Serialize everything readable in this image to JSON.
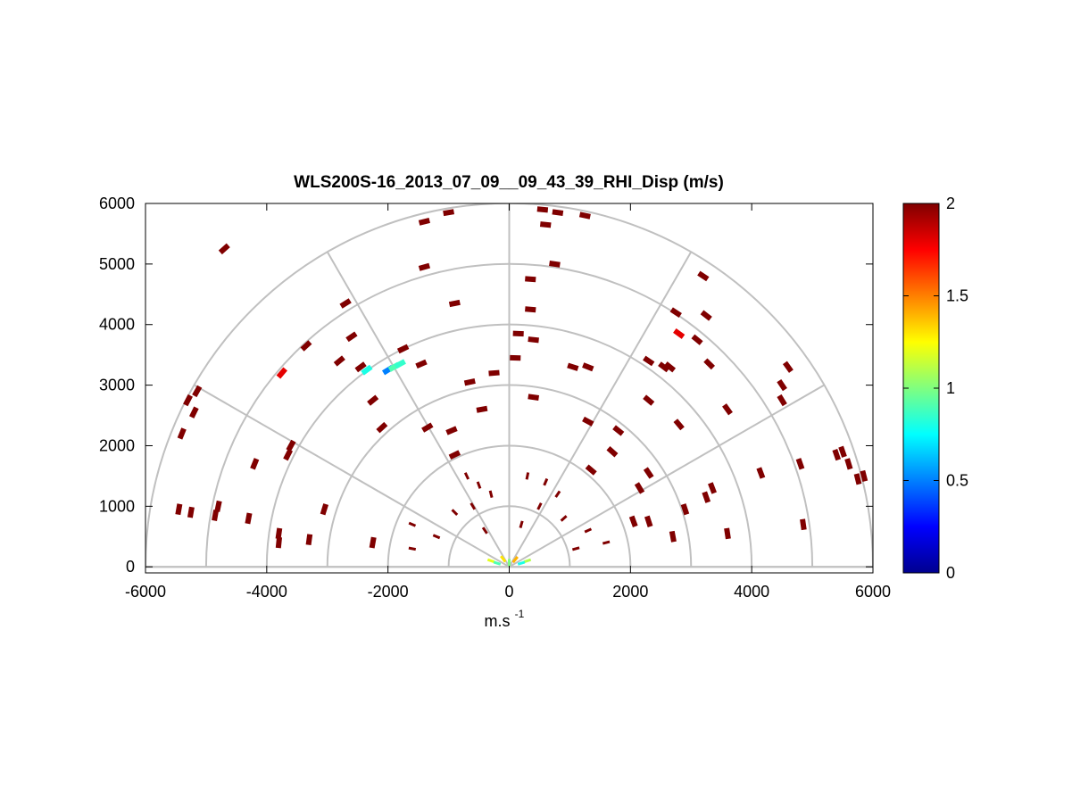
{
  "chart_data": {
    "type": "scatter",
    "subtype": "polar-rhi-pcolor",
    "title": "WLS200S-16_2013_07_09__09_43_39_RHI_Disp (m/s)",
    "xlabel": "m.s",
    "xlabel_superscript": "-1",
    "xlim": [
      -6000,
      6000
    ],
    "ylim": [
      -100,
      6000
    ],
    "x_ticks": [
      -6000,
      -4000,
      -2000,
      0,
      2000,
      4000,
      6000
    ],
    "x_tick_labels": [
      "-6000",
      "-4000",
      "-2000",
      "0",
      "2000",
      "4000",
      "6000"
    ],
    "y_ticks": [
      0,
      1000,
      2000,
      3000,
      4000,
      5000,
      6000
    ],
    "y_tick_labels": [
      "0",
      "1000",
      "2000",
      "3000",
      "4000",
      "5000",
      "6000"
    ],
    "polar_grid": {
      "ring_radii": [
        1000,
        2000,
        3000,
        4000,
        5000,
        6000
      ],
      "spoke_angles_deg": [
        0,
        30,
        60,
        90,
        120,
        150,
        180
      ],
      "color": "#c0c0c0"
    },
    "colorbar": {
      "min": 0,
      "max": 2,
      "ticks": [
        0,
        0.5,
        1,
        1.5,
        2
      ],
      "tick_labels": [
        "0",
        "0.5",
        "1",
        "1.5",
        "2"
      ],
      "colormap": "jet"
    },
    "cells": [
      {
        "x": -5300,
        "y": 2750,
        "v": 2
      },
      {
        "x": -5200,
        "y": 2550,
        "v": 2
      },
      {
        "x": -5400,
        "y": 2200,
        "v": 2
      },
      {
        "x": -5150,
        "y": 2900,
        "v": 2
      },
      {
        "x": -5450,
        "y": 950,
        "v": 2
      },
      {
        "x": -5250,
        "y": 900,
        "v": 2
      },
      {
        "x": -4700,
        "y": 5250,
        "v": 2
      },
      {
        "x": -4200,
        "y": 1700,
        "v": 2
      },
      {
        "x": -4800,
        "y": 1000,
        "v": 2
      },
      {
        "x": -4850,
        "y": 850,
        "v": 2
      },
      {
        "x": -4300,
        "y": 800,
        "v": 2
      },
      {
        "x": -3750,
        "y": 3200,
        "v": 1.8
      },
      {
        "x": -3650,
        "y": 1850,
        "v": 2
      },
      {
        "x": -3600,
        "y": 2000,
        "v": 2
      },
      {
        "x": -3800,
        "y": 550,
        "v": 2
      },
      {
        "x": -3800,
        "y": 400,
        "v": 2
      },
      {
        "x": -3300,
        "y": 450,
        "v": 2
      },
      {
        "x": -3050,
        "y": 950,
        "v": 2
      },
      {
        "x": -3350,
        "y": 3650,
        "v": 2
      },
      {
        "x": -2700,
        "y": 4350,
        "v": 2
      },
      {
        "x": -2600,
        "y": 3800,
        "v": 2
      },
      {
        "x": -2800,
        "y": 3400,
        "v": 2
      },
      {
        "x": -2450,
        "y": 3300,
        "v": 2
      },
      {
        "x": -2350,
        "y": 3250,
        "v": 0.8
      },
      {
        "x": -2000,
        "y": 3250,
        "v": 0.5
      },
      {
        "x": -1900,
        "y": 3300,
        "v": 0.9
      },
      {
        "x": -1800,
        "y": 3350,
        "v": 0.85
      },
      {
        "x": -1750,
        "y": 3600,
        "v": 2
      },
      {
        "x": -1450,
        "y": 3350,
        "v": 2
      },
      {
        "x": -2250,
        "y": 2750,
        "v": 2
      },
      {
        "x": -2100,
        "y": 2300,
        "v": 2
      },
      {
        "x": -1350,
        "y": 2300,
        "v": 2
      },
      {
        "x": -2250,
        "y": 400,
        "v": 2
      },
      {
        "x": -1400,
        "y": 5700,
        "v": 2
      },
      {
        "x": -1000,
        "y": 5850,
        "v": 2
      },
      {
        "x": -1400,
        "y": 4950,
        "v": 2
      },
      {
        "x": -900,
        "y": 4350,
        "v": 2
      },
      {
        "x": -650,
        "y": 3050,
        "v": 2
      },
      {
        "x": -450,
        "y": 2600,
        "v": 2
      },
      {
        "x": -950,
        "y": 2250,
        "v": 2
      },
      {
        "x": -900,
        "y": 1850,
        "v": 2
      },
      {
        "x": -250,
        "y": 3200,
        "v": 2
      },
      {
        "x": 550,
        "y": 5900,
        "v": 2
      },
      {
        "x": 800,
        "y": 5850,
        "v": 2
      },
      {
        "x": 1250,
        "y": 5800,
        "v": 2
      },
      {
        "x": 600,
        "y": 5650,
        "v": 2
      },
      {
        "x": 750,
        "y": 5000,
        "v": 2
      },
      {
        "x": 350,
        "y": 4750,
        "v": 2
      },
      {
        "x": 350,
        "y": 4250,
        "v": 2
      },
      {
        "x": 150,
        "y": 3850,
        "v": 2
      },
      {
        "x": 400,
        "y": 3750,
        "v": 2
      },
      {
        "x": 100,
        "y": 3450,
        "v": 2
      },
      {
        "x": 400,
        "y": 2800,
        "v": 2
      },
      {
        "x": 1050,
        "y": 3300,
        "v": 2
      },
      {
        "x": 1300,
        "y": 3300,
        "v": 2
      },
      {
        "x": 1300,
        "y": 2400,
        "v": 2
      },
      {
        "x": 1800,
        "y": 2250,
        "v": 2
      },
      {
        "x": 1700,
        "y": 1900,
        "v": 2
      },
      {
        "x": 1350,
        "y": 1600,
        "v": 2
      },
      {
        "x": 2300,
        "y": 3400,
        "v": 2
      },
      {
        "x": 2300,
        "y": 2750,
        "v": 2
      },
      {
        "x": 2550,
        "y": 3300,
        "v": 2
      },
      {
        "x": 2650,
        "y": 3300,
        "v": 2
      },
      {
        "x": 2750,
        "y": 4200,
        "v": 2
      },
      {
        "x": 2800,
        "y": 3850,
        "v": 1.8
      },
      {
        "x": 3200,
        "y": 4800,
        "v": 2
      },
      {
        "x": 3250,
        "y": 4150,
        "v": 2
      },
      {
        "x": 3100,
        "y": 3750,
        "v": 2
      },
      {
        "x": 3300,
        "y": 3350,
        "v": 2
      },
      {
        "x": 2800,
        "y": 2350,
        "v": 2
      },
      {
        "x": 3600,
        "y": 2600,
        "v": 2
      },
      {
        "x": 2300,
        "y": 1550,
        "v": 2
      },
      {
        "x": 2150,
        "y": 1300,
        "v": 2
      },
      {
        "x": 3350,
        "y": 1300,
        "v": 2
      },
      {
        "x": 3250,
        "y": 1150,
        "v": 2
      },
      {
        "x": 2900,
        "y": 950,
        "v": 2
      },
      {
        "x": 2300,
        "y": 750,
        "v": 2
      },
      {
        "x": 2050,
        "y": 750,
        "v": 2
      },
      {
        "x": 2700,
        "y": 500,
        "v": 2
      },
      {
        "x": 3600,
        "y": 550,
        "v": 2
      },
      {
        "x": 4150,
        "y": 1550,
        "v": 2
      },
      {
        "x": 4500,
        "y": 3000,
        "v": 2
      },
      {
        "x": 4500,
        "y": 2750,
        "v": 2
      },
      {
        "x": 4600,
        "y": 3300,
        "v": 2
      },
      {
        "x": 4800,
        "y": 1700,
        "v": 2
      },
      {
        "x": 4850,
        "y": 700,
        "v": 2
      },
      {
        "x": 5400,
        "y": 1850,
        "v": 2
      },
      {
        "x": 5500,
        "y": 1900,
        "v": 2
      },
      {
        "x": 5600,
        "y": 1700,
        "v": 2
      },
      {
        "x": 5750,
        "y": 1450,
        "v": 2
      },
      {
        "x": 5850,
        "y": 1500,
        "v": 2
      },
      {
        "x": -700,
        "y": 1500,
        "v": 2
      },
      {
        "x": -500,
        "y": 1350,
        "v": 2
      },
      {
        "x": -300,
        "y": 1200,
        "v": 2
      },
      {
        "x": 300,
        "y": 1500,
        "v": 2
      },
      {
        "x": 600,
        "y": 1400,
        "v": 2
      },
      {
        "x": 800,
        "y": 1200,
        "v": 2
      },
      {
        "x": -900,
        "y": 900,
        "v": 2
      },
      {
        "x": -600,
        "y": 1000,
        "v": 2
      },
      {
        "x": 500,
        "y": 1000,
        "v": 2
      },
      {
        "x": 900,
        "y": 800,
        "v": 2
      },
      {
        "x": 1300,
        "y": 600,
        "v": 2
      },
      {
        "x": 1600,
        "y": 400,
        "v": 2
      },
      {
        "x": -1600,
        "y": 300,
        "v": 2
      },
      {
        "x": -1200,
        "y": 500,
        "v": 2
      },
      {
        "x": -1600,
        "y": 700,
        "v": 2
      },
      {
        "x": -400,
        "y": 600,
        "v": 2
      },
      {
        "x": 200,
        "y": 700,
        "v": 2
      },
      {
        "x": 1100,
        "y": 300,
        "v": 2
      },
      {
        "x": -300,
        "y": 100,
        "v": 1.2
      },
      {
        "x": -100,
        "y": 130,
        "v": 1.3
      },
      {
        "x": 100,
        "y": 120,
        "v": 1.4
      },
      {
        "x": 300,
        "y": 100,
        "v": 1.1
      },
      {
        "x": 0,
        "y": 70,
        "v": 1.0
      },
      {
        "x": 200,
        "y": 60,
        "v": 0.8
      },
      {
        "x": -200,
        "y": 60,
        "v": 0.9
      }
    ]
  }
}
